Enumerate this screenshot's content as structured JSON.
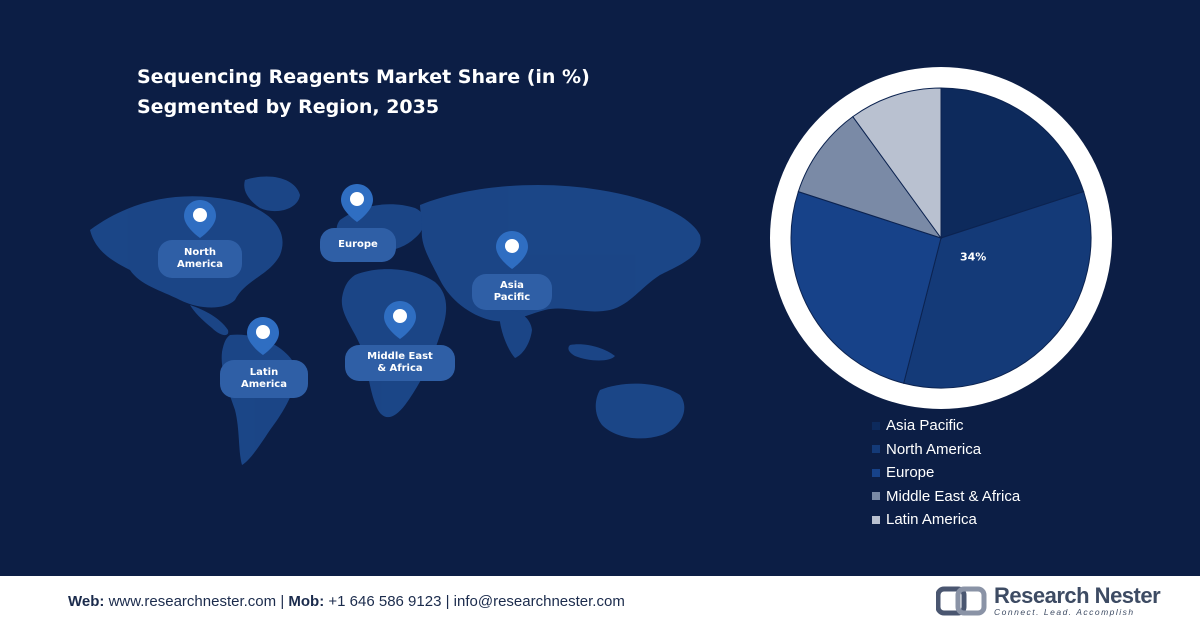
{
  "header": {
    "title_line1": "Sequencing Reagents Market Share (in %)",
    "title_line2": "Segmented by Region, 2035"
  },
  "map": {
    "regions": [
      {
        "name": "North\nAmerica",
        "icon": "location-pin-icon"
      },
      {
        "name": "Europe",
        "icon": "location-pin-icon"
      },
      {
        "name": "Asia\nPacific",
        "icon": "location-pin-icon"
      },
      {
        "name": "Middle East\n& Africa",
        "icon": "location-pin-icon"
      },
      {
        "name": "Latin\nAmerica",
        "icon": "location-pin-icon"
      }
    ]
  },
  "chart_data": {
    "type": "pie",
    "title": "Sequencing Reagents Market Share (in %) Segmented by Region, 2035",
    "categories": [
      "Asia Pacific",
      "North America",
      "Europe",
      "Middle East & Africa",
      "Latin America"
    ],
    "values": [
      20,
      34,
      26,
      10,
      10
    ],
    "colors": [
      "#0d2a5c",
      "#143a78",
      "#174289",
      "#7a8aa6",
      "#b9c1d0"
    ],
    "data_labels": [
      "",
      "34%",
      "",
      "",
      ""
    ],
    "legend_position": "bottom-right"
  },
  "footer": {
    "web_label": "Web:",
    "web_value": "www.researchnester.com",
    "sep1": "|",
    "mob_label": "Mob:",
    "mob_value": "+1 646 586 9123",
    "sep2": "|",
    "email": "info@researchnester.com",
    "brand_name": "Research Nester",
    "brand_tagline": "Connect. Lead. Accomplish",
    "brand_icon": "research-nester-logo-icon"
  }
}
